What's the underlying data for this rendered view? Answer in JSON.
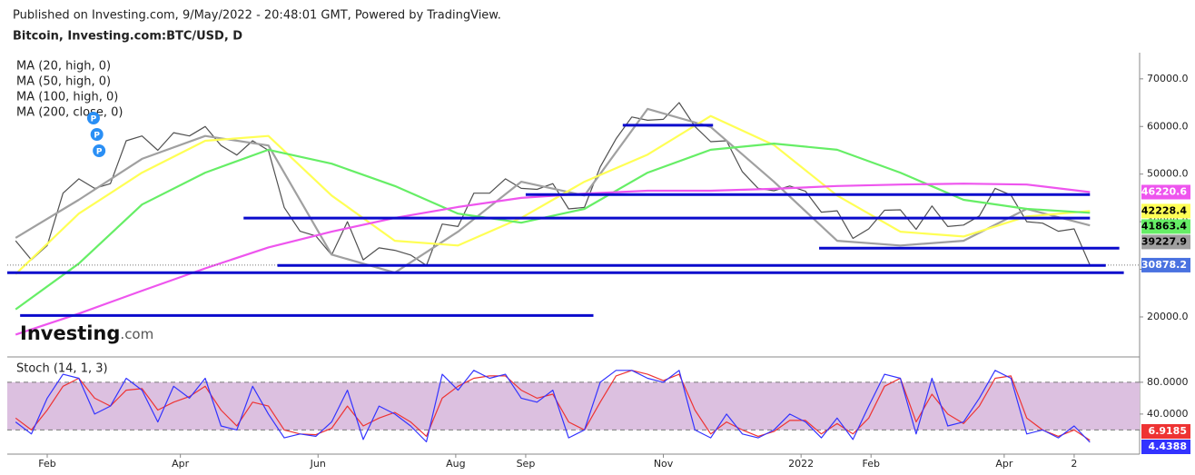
{
  "header": {
    "published": "Published on Investing.com, 9/May/2022 - 20:48:01 GMT, Powered by TradingView.",
    "symbol": "Bitcoin, Investing.com:BTC/USD, D"
  },
  "chart_data": [
    {
      "type": "line",
      "watermark": {
        "brand": "Investing",
        "suffix": ".com"
      },
      "xlim": [
        -17.7,
        484
      ],
      "ylim": [
        11600,
        75500
      ],
      "xticks": [
        {
          "value": 0,
          "label": "Feb"
        },
        {
          "value": 59,
          "label": "Apr"
        },
        {
          "value": 120,
          "label": "Jun"
        },
        {
          "value": 181,
          "label": "Aug"
        },
        {
          "value": 212,
          "label": "Sep"
        },
        {
          "value": 273,
          "label": "Nov"
        },
        {
          "value": 334,
          "label": "2022"
        },
        {
          "value": 365,
          "label": "Feb"
        },
        {
          "value": 424,
          "label": "Apr"
        },
        {
          "value": 455,
          "label": "2"
        }
      ],
      "yticks": [
        {
          "value": 70000,
          "label": "70000.0"
        },
        {
          "value": 60000,
          "label": "60000.0"
        },
        {
          "value": 50000,
          "label": "50000.0"
        },
        {
          "value": 40000,
          "label": "40000.0"
        },
        {
          "value": 30000,
          "label": "30000.0"
        },
        {
          "value": 20000,
          "label": "20000.0"
        }
      ],
      "series": [
        {
          "color": "#505050",
          "label_color": "#4a72e0",
          "x": [
            -14,
            -7,
            0,
            7,
            14,
            21,
            28,
            35,
            42,
            49,
            56,
            63,
            70,
            77,
            84,
            91,
            98,
            105,
            112,
            119,
            126,
            133,
            140,
            147,
            154,
            161,
            168,
            175,
            182,
            189,
            196,
            203,
            210,
            217,
            224,
            231,
            238,
            245,
            252,
            259,
            266,
            273,
            280,
            287,
            294,
            301,
            308,
            315,
            322,
            329,
            336,
            343,
            350,
            357,
            364,
            371,
            378,
            385,
            392,
            399,
            406,
            413,
            420,
            427,
            434,
            441,
            448,
            455,
            462
          ],
          "values": [
            36000,
            32000,
            35000,
            46000,
            49000,
            47000,
            48000,
            57000,
            58000,
            55000,
            58700,
            58000,
            60000,
            56000,
            54000,
            57000,
            55000,
            43000,
            38000,
            37000,
            33000,
            40000,
            32000,
            34500,
            34000,
            33000,
            30800,
            39500,
            39000,
            46000,
            46000,
            49000,
            47000,
            46800,
            48000,
            42700,
            43000,
            51500,
            57400,
            62000,
            61300,
            61500,
            65000,
            60000,
            56800,
            57000,
            50500,
            47000,
            46500,
            47500,
            46400,
            42000,
            42300,
            36500,
            38500,
            42400,
            42500,
            38400,
            43300,
            39000,
            39300,
            41200,
            47000,
            45600,
            40000,
            39700,
            38000,
            38500,
            30878.2
          ]
        },
        {
          "name": "MA (20, high, 0)",
          "color": "#a0a0a0",
          "x": [
            -14,
            14,
            42,
            70,
            98,
            126,
            154,
            182,
            210,
            238,
            266,
            294,
            322,
            350,
            378,
            406,
            434,
            462
          ],
          "values": [
            36600,
            44600,
            53200,
            58000,
            56000,
            33100,
            29300,
            37900,
            48400,
            45500,
            63700,
            59900,
            48400,
            36000,
            35000,
            36000,
            42700,
            39227.9
          ]
        },
        {
          "name": "MA (50, high, 0)",
          "color": "#ffff55",
          "x": [
            -14,
            14,
            42,
            70,
            98,
            126,
            154,
            182,
            210,
            238,
            266,
            294,
            322,
            350,
            378,
            406,
            434,
            462
          ],
          "values": [
            29000,
            41700,
            50300,
            57000,
            58000,
            45500,
            36000,
            35000,
            40800,
            48400,
            54100,
            62200,
            56100,
            45500,
            37900,
            36900,
            41100,
            42228.4
          ]
        },
        {
          "name": "MA (100, high, 0)",
          "color": "#66ee66",
          "x": [
            -14,
            14,
            42,
            70,
            98,
            126,
            154,
            182,
            210,
            238,
            266,
            294,
            322,
            350,
            378,
            406,
            434,
            462
          ],
          "values": [
            21600,
            31200,
            43600,
            50300,
            55100,
            52200,
            47500,
            41700,
            39800,
            42700,
            50300,
            55100,
            56400,
            55100,
            50300,
            44600,
            42700,
            41863.4
          ]
        },
        {
          "name": "MA (200, close, 0)",
          "color": "#ee55ee",
          "x": [
            -14,
            14,
            42,
            70,
            98,
            126,
            154,
            182,
            210,
            238,
            266,
            294,
            322,
            350,
            378,
            406,
            434,
            462
          ],
          "values": [
            16300,
            20700,
            25500,
            30200,
            34600,
            37900,
            40800,
            43100,
            45000,
            45900,
            46500,
            46500,
            46900,
            47500,
            47800,
            48000,
            47800,
            46220.6
          ]
        }
      ],
      "levels": [
        {
          "value": 60270,
          "x": [
            255,
            295
          ]
        },
        {
          "value": 45700,
          "x": [
            212,
            462
          ]
        },
        {
          "value": 40760,
          "x": [
            87,
            462
          ]
        },
        {
          "value": 34450,
          "x": [
            342,
            475
          ]
        },
        {
          "value": 30820,
          "x": [
            102,
            469
          ]
        },
        {
          "value": 29300,
          "x": [
            -18,
            477
          ]
        },
        {
          "value": 20300,
          "x": [
            -12,
            242
          ]
        }
      ],
      "level_color": "#0a0acc",
      "markers": {
        "label": "P",
        "color": "#2a8ff5",
        "x": [
          20.5,
          22,
          23
        ]
      }
    },
    {
      "type": "line",
      "title": "Stoch (14, 1, 3)",
      "xlim": [
        -17.7,
        484
      ],
      "ylim": [
        -10.4,
        107.3
      ],
      "yticks": [
        {
          "value": 80,
          "label": "80.0000"
        },
        {
          "value": 40,
          "label": "40.0000"
        }
      ],
      "band": [
        20,
        80
      ],
      "band_color": "#dcc0e0",
      "x": [
        -14,
        -7,
        0,
        7,
        14,
        21,
        28,
        35,
        42,
        49,
        56,
        63,
        70,
        77,
        84,
        91,
        98,
        105,
        112,
        119,
        126,
        133,
        140,
        147,
        154,
        161,
        168,
        175,
        182,
        189,
        196,
        203,
        210,
        217,
        224,
        231,
        238,
        245,
        252,
        259,
        266,
        273,
        280,
        287,
        294,
        301,
        308,
        315,
        322,
        329,
        336,
        343,
        350,
        357,
        364,
        371,
        378,
        385,
        392,
        399,
        406,
        413,
        420,
        427,
        434,
        441,
        448,
        455,
        462
      ],
      "series": [
        {
          "color": "#ee3333",
          "values": [
            35,
            20,
            45,
            75,
            85,
            60,
            50,
            70,
            72,
            45,
            55,
            62,
            75,
            45,
            25,
            55,
            50,
            20,
            15,
            14,
            22,
            50,
            25,
            35,
            42,
            30,
            12,
            60,
            75,
            85,
            88,
            88,
            70,
            60,
            65,
            30,
            20,
            55,
            88,
            95,
            90,
            82,
            90,
            45,
            15,
            30,
            20,
            12,
            18,
            32,
            32,
            15,
            28,
            15,
            35,
            75,
            85,
            30,
            65,
            40,
            28,
            50,
            85,
            88,
            35,
            20,
            12,
            20,
            6.9185
          ]
        },
        {
          "color": "#3333ff",
          "values": [
            30,
            15,
            60,
            90,
            85,
            40,
            50,
            85,
            70,
            30,
            75,
            60,
            85,
            25,
            20,
            75,
            40,
            10,
            15,
            12,
            30,
            70,
            8,
            50,
            40,
            25,
            5,
            90,
            70,
            95,
            85,
            90,
            60,
            55,
            70,
            10,
            20,
            80,
            95,
            95,
            85,
            80,
            95,
            20,
            10,
            40,
            15,
            10,
            20,
            40,
            30,
            10,
            35,
            8,
            50,
            90,
            85,
            15,
            85,
            25,
            30,
            60,
            95,
            85,
            15,
            20,
            10,
            25,
            4.4388
          ]
        }
      ]
    }
  ]
}
